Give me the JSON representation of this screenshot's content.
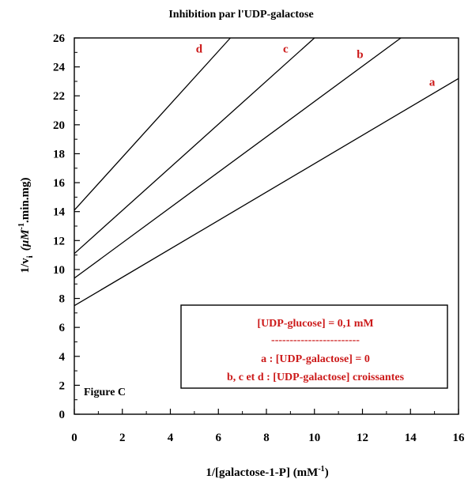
{
  "chart_data": {
    "type": "line",
    "title": "Inhibition par l'UDP-galactose",
    "xlabel": "1/[galactose-1-P] (mM",
    "xlabel_sup": "-1",
    "xlabel_close": ")",
    "ylabel_main": "1/v",
    "ylabel_sub": "i",
    "ylabel_unit": "(µM",
    "ylabel_sup": "-1",
    "ylabel_rest": ".min.mg)",
    "xlim": [
      0,
      16
    ],
    "ylim": [
      0,
      26
    ],
    "xticks": [
      0,
      2,
      4,
      6,
      8,
      10,
      12,
      14,
      16
    ],
    "yticks": [
      0,
      2,
      4,
      6,
      8,
      10,
      12,
      14,
      16,
      18,
      20,
      22,
      24,
      26
    ],
    "grid": false,
    "series": [
      {
        "name": "a",
        "x": [
          0,
          16
        ],
        "y": [
          7.5,
          23.2
        ],
        "label_at": [
          14.9,
          22.7
        ]
      },
      {
        "name": "b",
        "x": [
          0,
          13.6
        ],
        "y": [
          9.4,
          26
        ],
        "label_at": [
          11.9,
          24.6
        ]
      },
      {
        "name": "c",
        "x": [
          0,
          10
        ],
        "y": [
          11.1,
          26
        ],
        "label_at": [
          8.8,
          25.0
        ]
      },
      {
        "name": "d",
        "x": [
          0,
          6.5
        ],
        "y": [
          14.1,
          26
        ],
        "label_at": [
          5.2,
          25.0
        ]
      }
    ],
    "legend": {
      "position": "bottom-right",
      "lines": [
        "[UDP-glucose] = 0,1 mM",
        "------------------------",
        "a : [UDP-galactose] = 0",
        "b, c et d : [UDP-galactose] croissantes"
      ],
      "color": "#cc1a1a"
    },
    "annotation": "Figure C"
  }
}
